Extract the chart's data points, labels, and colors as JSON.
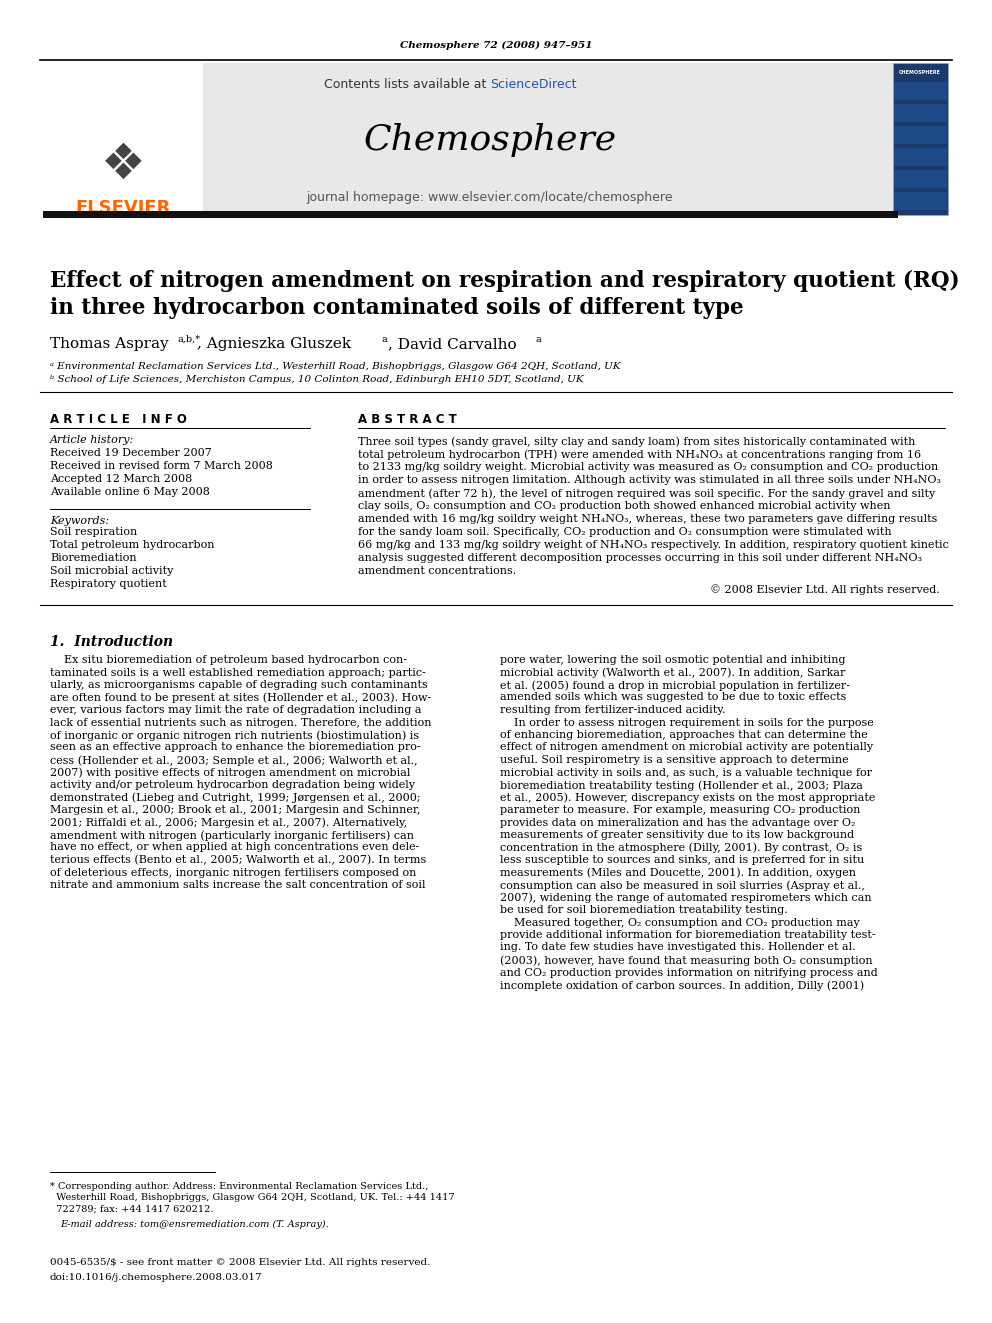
{
  "page_width": 9.92,
  "page_height": 13.23,
  "bg_color": "#ffffff",
  "journal_ref": "Chemosphere 72 (2008) 947–951",
  "header_bg": "#e8e8e8",
  "header_contents": "Contents lists available at ScienceDirect",
  "sciencedirect_color": "#2255aa",
  "journal_name": "Chemosphere",
  "journal_homepage": "journal homepage: www.elsevier.com/locate/chemosphere",
  "elsevier_color": "#ff6600",
  "elsevier_text": "ELSEVIER",
  "title_line1": "Effect of nitrogen amendment on respiration and respiratory quotient (RQ)",
  "title_line2": "in three hydrocarbon contaminated soils of different type",
  "affil_a": "ᵃ Environmental Reclamation Services Ltd., Westerhill Road, Bishopbriggs, Glasgow G64 2QH, Scotland, UK",
  "affil_b": "ᵇ School of Life Sciences, Merchiston Campus, 10 Colinton Road, Edinburgh EH10 5DT, Scotland, UK",
  "section_article_info": "A R T I C L E   I N F O",
  "article_history_title": "Article history:",
  "received1": "Received 19 December 2007",
  "received2": "Received in revised form 7 March 2008",
  "accepted": "Accepted 12 March 2008",
  "online": "Available online 6 May 2008",
  "keywords_title": "Keywords:",
  "kw1": "Soil respiration",
  "kw2": "Total petroleum hydrocarbon",
  "kw3": "Bioremediation",
  "kw4": "Soil microbial activity",
  "kw5": "Respiratory quotient",
  "section_abstract": "A B S T R A C T",
  "copyright": "© 2008 Elsevier Ltd. All rights reserved.",
  "section_intro": "1.  Introduction",
  "footnote_issn": "0045-6535/$ - see front matter © 2008 Elsevier Ltd. All rights reserved.",
  "footnote_doi": "doi:10.1016/j.chemosphere.2008.03.017"
}
